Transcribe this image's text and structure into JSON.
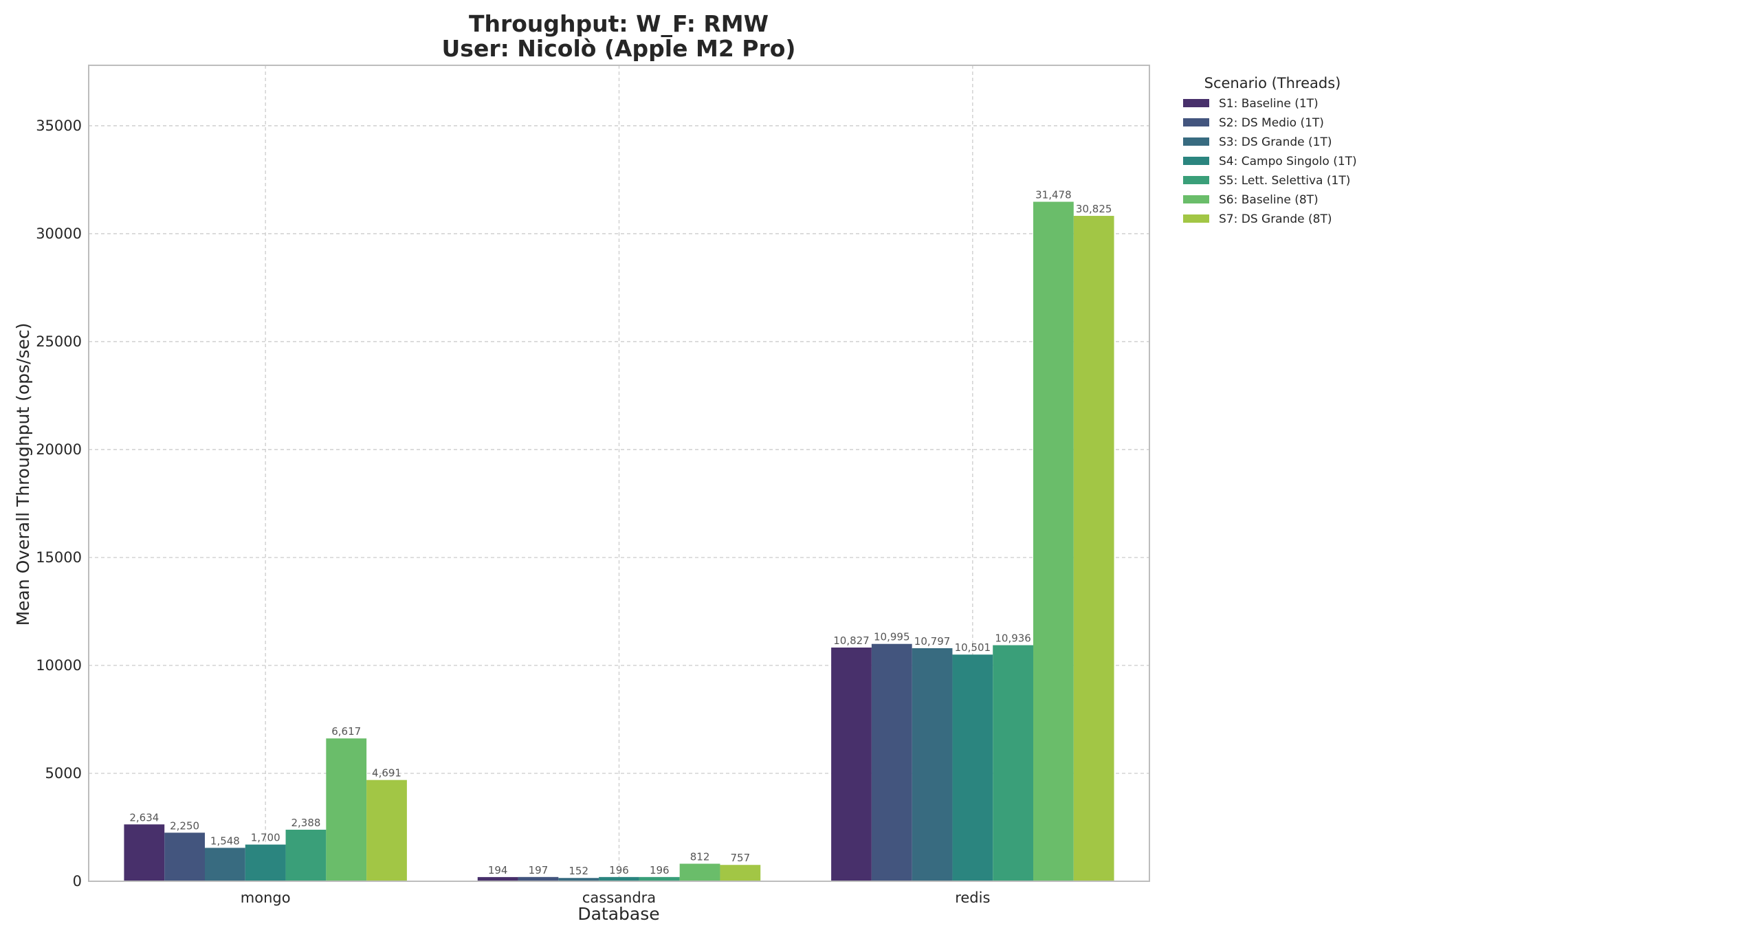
{
  "chart_data": {
    "type": "bar",
    "title": "Throughput: W_F: RMW",
    "subtitle": "User: Nicolò (Apple M2 Pro)",
    "xlabel": "Database",
    "ylabel": "Mean Overall Throughput (ops/sec)",
    "ylim": [
      0,
      37800
    ],
    "yticks": [
      0,
      5000,
      10000,
      15000,
      20000,
      25000,
      30000,
      35000
    ],
    "grid": true,
    "legend_title": "Scenario (Threads)",
    "legend_position": "outside-top-right",
    "categories": [
      "mongo",
      "cassandra",
      "redis"
    ],
    "series": [
      {
        "name": "S1: Baseline (1T)",
        "color": "#48306b",
        "values": [
          2634,
          194,
          10827
        ],
        "labels": [
          "2,634",
          "194",
          "10,827"
        ]
      },
      {
        "name": "S2: DS Medio (1T)",
        "color": "#43557e",
        "values": [
          2250,
          197,
          10995
        ],
        "labels": [
          "2,250",
          "197",
          "10,995"
        ]
      },
      {
        "name": "S3: DS Grande (1T)",
        "color": "#386b80",
        "values": [
          1548,
          152,
          10797
        ],
        "labels": [
          "1,548",
          "152",
          "10,797"
        ]
      },
      {
        "name": "S4: Campo Singolo (1T)",
        "color": "#2b857f",
        "values": [
          1700,
          196,
          10501
        ],
        "labels": [
          "1,700",
          "196",
          "10,501"
        ]
      },
      {
        "name": "S5: Lett. Selettiva (1T)",
        "color": "#3a9f79",
        "values": [
          2388,
          196,
          10936
        ],
        "labels": [
          "2,388",
          "196",
          "10,936"
        ]
      },
      {
        "name": "S6: Baseline (8T)",
        "color": "#6abd6a",
        "values": [
          6617,
          812,
          31478
        ],
        "labels": [
          "6,617",
          "812",
          "31,478"
        ]
      },
      {
        "name": "S7: DS Grande (8T)",
        "color": "#a2c645",
        "values": [
          4691,
          757,
          30825
        ],
        "labels": [
          "4,691",
          "757",
          "30,825"
        ]
      }
    ]
  }
}
